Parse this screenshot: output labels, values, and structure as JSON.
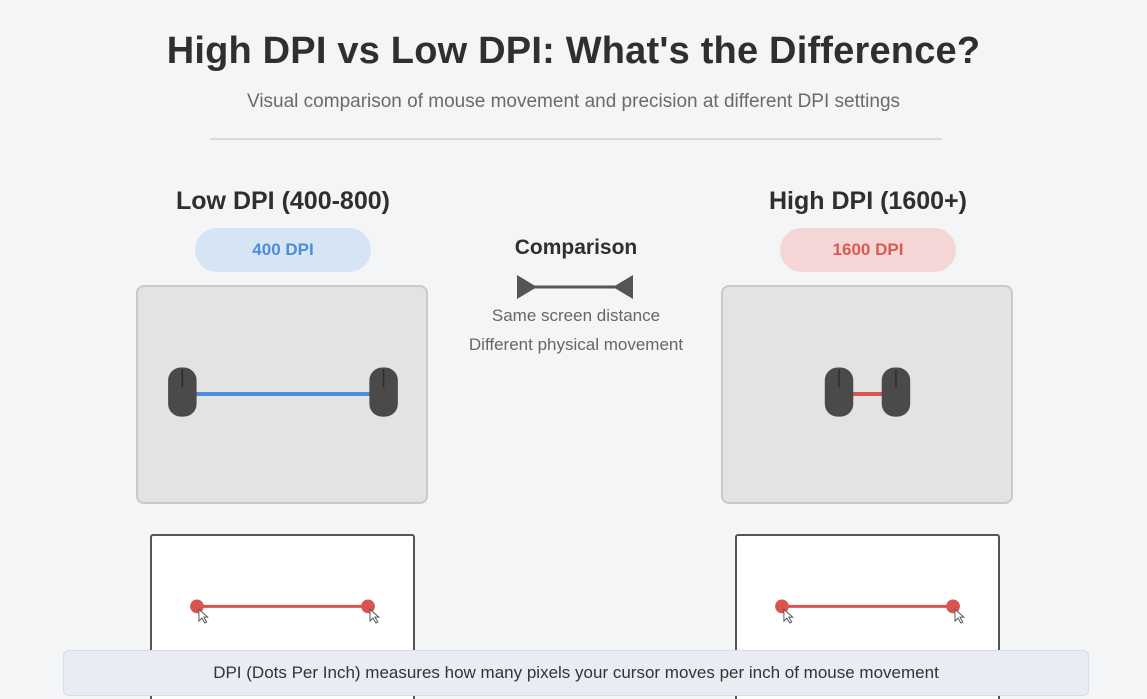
{
  "header": {
    "title": "High DPI vs Low DPI: What's the Difference?",
    "subtitle": "Visual comparison of mouse movement and precision at different DPI settings"
  },
  "low_dpi": {
    "heading": "Low DPI (400-800)",
    "badge": "400 DPI",
    "accent_color": "#4a90d9",
    "badge_bg": "#d6e5f4"
  },
  "high_dpi": {
    "heading": "High DPI (1600+)",
    "badge": "1600 DPI",
    "accent_color": "#d9534f",
    "badge_bg": "#f5d6d6"
  },
  "comparison": {
    "title": "Comparison",
    "note_line1": "Same screen distance",
    "note_line2": "Different physical movement"
  },
  "footer": {
    "text": "DPI (Dots Per Inch) measures how many pixels your cursor moves per inch of mouse movement"
  },
  "icons": {
    "mouse": "mouse-icon",
    "cursor": "cursor-icon",
    "arrow": "double-arrow-icon"
  }
}
